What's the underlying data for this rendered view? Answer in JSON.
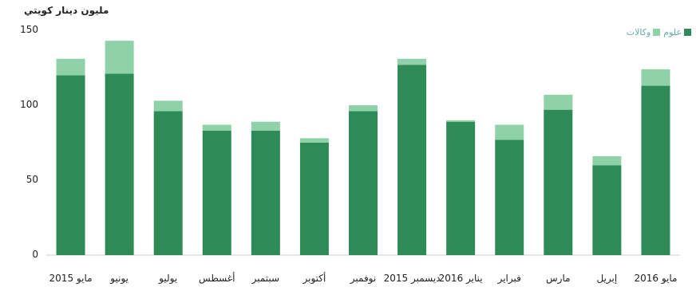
{
  "chart_data": {
    "type": "bar",
    "stacked": true,
    "ylabel": "مليون دينار كويتي",
    "ylim": [
      0,
      150
    ],
    "yticks": [
      0,
      50,
      100,
      150
    ],
    "categories": [
      "مايو 2015",
      "يونيو",
      "يوليو",
      "أغسطس",
      "سبتمبر",
      "أكتوبر",
      "نوفمبر",
      "ديسمبر 2015",
      "يناير 2016",
      "فبراير",
      "مارس",
      "إبريل",
      "مايو 2016"
    ],
    "series": [
      {
        "name": "علوم",
        "color": "#2e8b57",
        "values": [
          120,
          121,
          96,
          83,
          83,
          75,
          96,
          127,
          89,
          77,
          97,
          60,
          113
        ]
      },
      {
        "name": "وكالات",
        "color": "#8fd1a8",
        "values": [
          11,
          22,
          7,
          4,
          6,
          3,
          4,
          4,
          1,
          10,
          10,
          6,
          11
        ]
      }
    ],
    "legend_position": "top-right",
    "grid": false
  }
}
